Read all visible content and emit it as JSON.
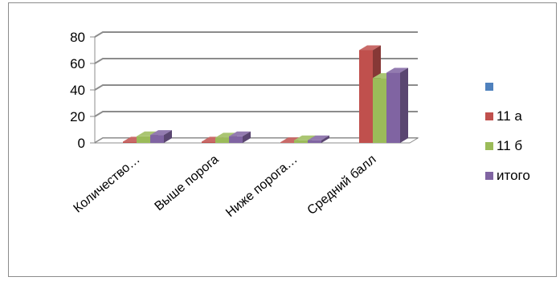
{
  "chart_data": {
    "type": "bar",
    "subtype": "clustered-3d",
    "categories": [
      "Количество…",
      "Выше порога",
      "Ниже порога…",
      "Средний балл"
    ],
    "series": [
      {
        "name": "",
        "color": "#4f81bd",
        "values": [
          0,
          0,
          0,
          0
        ]
      },
      {
        "name": "11 а",
        "color": "#c0504d",
        "values": [
          1,
          1,
          0.5,
          70
        ]
      },
      {
        "name": "11 б",
        "color": "#9bbb59",
        "values": [
          5,
          4,
          2,
          49
        ]
      },
      {
        "name": "итого",
        "color": "#8064a2",
        "values": [
          6,
          5,
          2,
          53
        ]
      }
    ],
    "ylim": [
      0,
      80
    ],
    "yticks": [
      0,
      20,
      40,
      60,
      80
    ],
    "grid": true,
    "legend_position": "right",
    "title": "",
    "xlabel": "",
    "ylabel": ""
  }
}
